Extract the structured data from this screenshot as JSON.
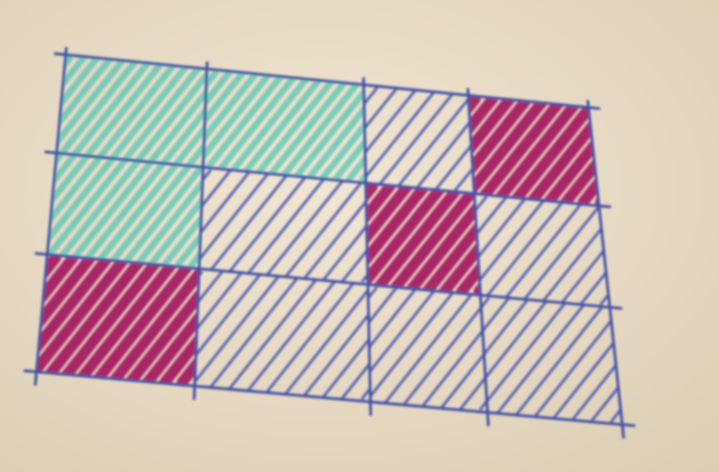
{
  "grid": {
    "cells": [
      [
        "#5ec6b6",
        "#5ec6b6",
        "#4a58ae",
        "#a3165e"
      ],
      [
        "#5ec6b6",
        "#4a58ae",
        "#a3165e",
        "#4a58ae"
      ],
      [
        "#a3165e",
        "#4a58ae",
        "#4a58ae",
        "#4a58ae"
      ]
    ],
    "line_color": "#3f4fa6"
  }
}
